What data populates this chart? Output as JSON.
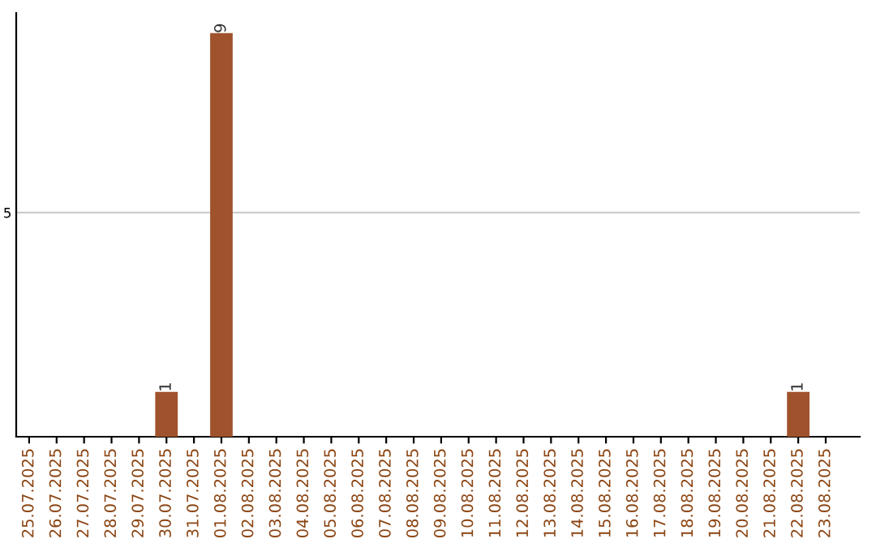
{
  "chart_data": {
    "type": "bar",
    "categories": [
      "25.07.2025",
      "26.07.2025",
      "27.07.2025",
      "28.07.2025",
      "29.07.2025",
      "30.07.2025",
      "31.07.2025",
      "01.08.2025",
      "02.08.2025",
      "03.08.2025",
      "04.08.2025",
      "05.08.2025",
      "06.08.2025",
      "07.08.2025",
      "08.08.2025",
      "09.08.2025",
      "10.08.2025",
      "11.08.2025",
      "12.08.2025",
      "13.08.2025",
      "14.08.2025",
      "15.08.2025",
      "16.08.2025",
      "17.08.2025",
      "18.08.2025",
      "19.08.2025",
      "20.08.2025",
      "21.08.2025",
      "22.08.2025",
      "23.08.2025"
    ],
    "values": [
      0,
      0,
      0,
      0,
      0,
      1,
      0,
      9,
      0,
      0,
      0,
      0,
      0,
      0,
      0,
      0,
      0,
      0,
      0,
      0,
      0,
      0,
      0,
      0,
      0,
      0,
      0,
      0,
      1,
      0
    ],
    "value_labels": [
      null,
      null,
      null,
      null,
      null,
      "1",
      null,
      "9",
      null,
      null,
      null,
      null,
      null,
      null,
      null,
      null,
      null,
      null,
      null,
      null,
      null,
      null,
      null,
      null,
      null,
      null,
      null,
      null,
      "1",
      null
    ],
    "color": "#a0522d",
    "ylim": [
      0,
      9.45
    ],
    "yticks": [
      5
    ],
    "grid": "y"
  }
}
